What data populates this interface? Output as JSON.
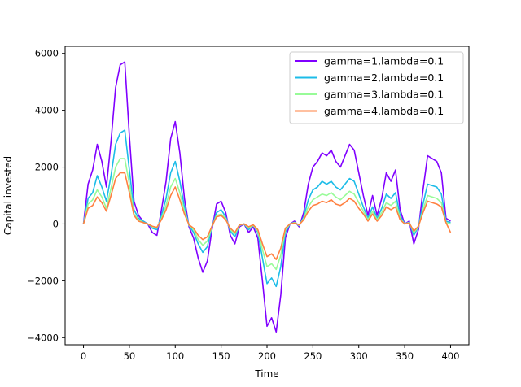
{
  "chart_data": {
    "type": "line",
    "xlabel": "Time",
    "ylabel": "Capital invested",
    "xlim": [
      -20,
      420
    ],
    "ylim": [
      -4250,
      6250
    ],
    "xticks": [
      0,
      50,
      100,
      150,
      200,
      250,
      300,
      350,
      400
    ],
    "yticks": [
      -4000,
      -2000,
      0,
      2000,
      4000,
      6000
    ],
    "grid": false,
    "legend_position": "top-right",
    "series": [
      {
        "name": "gamma=1,lambda=0.1",
        "color": "#8000ff",
        "x": [
          0,
          5,
          10,
          15,
          20,
          25,
          30,
          35,
          40,
          45,
          50,
          55,
          60,
          65,
          70,
          75,
          80,
          85,
          90,
          95,
          100,
          105,
          110,
          115,
          120,
          125,
          130,
          135,
          140,
          145,
          150,
          155,
          160,
          165,
          170,
          175,
          180,
          185,
          190,
          195,
          200,
          205,
          210,
          215,
          220,
          225,
          230,
          235,
          240,
          245,
          250,
          255,
          260,
          265,
          270,
          275,
          280,
          285,
          290,
          295,
          300,
          305,
          310,
          315,
          320,
          325,
          330,
          335,
          340,
          345,
          350,
          355,
          360,
          365,
          370,
          375,
          380,
          385,
          390,
          395,
          400
        ],
        "values": [
          0,
          1400,
          1900,
          2800,
          2200,
          1300,
          2900,
          4800,
          5600,
          5700,
          3100,
          800,
          300,
          100,
          0,
          -300,
          -400,
          500,
          1500,
          3000,
          3600,
          2500,
          900,
          -100,
          -500,
          -1200,
          -1700,
          -1300,
          -200,
          700,
          800,
          400,
          -400,
          -700,
          -100,
          0,
          -300,
          -100,
          -500,
          -2000,
          -3600,
          -3300,
          -3800,
          -2500,
          -500,
          0,
          100,
          -100,
          400,
          1400,
          2000,
          2200,
          2500,
          2400,
          2600,
          2200,
          2000,
          2400,
          2800,
          2600,
          1800,
          1000,
          300,
          1000,
          300,
          900,
          1800,
          1500,
          1900,
          500,
          0,
          100,
          -700,
          -200,
          1200,
          2400,
          2300,
          2200,
          1800,
          200,
          100
        ]
      },
      {
        "name": "gamma=2,lambda=0.1",
        "color": "#1cbce8",
        "x": [
          0,
          5,
          10,
          15,
          20,
          25,
          30,
          35,
          40,
          45,
          50,
          55,
          60,
          65,
          70,
          75,
          80,
          85,
          90,
          95,
          100,
          105,
          110,
          115,
          120,
          125,
          130,
          135,
          140,
          145,
          150,
          155,
          160,
          165,
          170,
          175,
          180,
          185,
          190,
          195,
          200,
          205,
          210,
          215,
          220,
          225,
          230,
          235,
          240,
          245,
          250,
          255,
          260,
          265,
          270,
          275,
          280,
          285,
          290,
          295,
          300,
          305,
          310,
          315,
          320,
          325,
          330,
          335,
          340,
          345,
          350,
          355,
          360,
          365,
          370,
          375,
          380,
          385,
          390,
          395,
          400
        ],
        "values": [
          0,
          900,
          1100,
          1700,
          1300,
          800,
          1700,
          2800,
          3200,
          3300,
          1900,
          500,
          200,
          100,
          0,
          -150,
          -200,
          300,
          900,
          1800,
          2200,
          1500,
          600,
          -50,
          -300,
          -700,
          -1000,
          -800,
          -100,
          400,
          500,
          250,
          -250,
          -450,
          -50,
          0,
          -200,
          -50,
          -300,
          -1200,
          -2100,
          -1900,
          -2200,
          -1500,
          -300,
          0,
          60,
          -60,
          250,
          850,
          1200,
          1300,
          1500,
          1400,
          1500,
          1300,
          1200,
          1400,
          1600,
          1500,
          1050,
          600,
          200,
          600,
          200,
          550,
          1050,
          900,
          1100,
          300,
          0,
          60,
          -400,
          -100,
          700,
          1400,
          1350,
          1300,
          1050,
          100,
          50
        ]
      },
      {
        "name": "gamma=3,lambda=0.1",
        "color": "#98fb98",
        "x": [
          0,
          5,
          10,
          15,
          20,
          25,
          30,
          35,
          40,
          45,
          50,
          55,
          60,
          65,
          70,
          75,
          80,
          85,
          90,
          95,
          100,
          105,
          110,
          115,
          120,
          125,
          130,
          135,
          140,
          145,
          150,
          155,
          160,
          165,
          170,
          175,
          180,
          185,
          190,
          195,
          200,
          205,
          210,
          215,
          220,
          225,
          230,
          235,
          240,
          245,
          250,
          255,
          260,
          265,
          270,
          275,
          280,
          285,
          290,
          295,
          300,
          305,
          310,
          315,
          320,
          325,
          330,
          335,
          340,
          345,
          350,
          355,
          360,
          365,
          370,
          375,
          380,
          385,
          390,
          395,
          400
        ],
        "values": [
          0,
          700,
          850,
          1200,
          950,
          550,
          1250,
          2000,
          2300,
          2300,
          1400,
          350,
          150,
          50,
          0,
          -100,
          -150,
          200,
          650,
          1300,
          1600,
          1100,
          450,
          -50,
          -200,
          -550,
          -750,
          -600,
          -100,
          300,
          350,
          200,
          -200,
          -350,
          -50,
          0,
          -150,
          -50,
          -250,
          -900,
          -1500,
          -1400,
          -1600,
          -1100,
          -200,
          0,
          50,
          -50,
          200,
          600,
          850,
          950,
          1050,
          1000,
          1100,
          950,
          850,
          1000,
          1150,
          1050,
          750,
          450,
          150,
          450,
          150,
          400,
          750,
          650,
          800,
          200,
          0,
          50,
          -300,
          -100,
          500,
          1000,
          950,
          900,
          750,
          50,
          0
        ]
      },
      {
        "name": "gamma=4,lambda=0.1",
        "color": "#ff8040",
        "x": [
          0,
          5,
          10,
          15,
          20,
          25,
          30,
          35,
          40,
          45,
          50,
          55,
          60,
          65,
          70,
          75,
          80,
          85,
          90,
          95,
          100,
          105,
          110,
          115,
          120,
          125,
          130,
          135,
          140,
          145,
          150,
          155,
          160,
          165,
          170,
          175,
          180,
          185,
          190,
          195,
          200,
          205,
          210,
          215,
          220,
          225,
          230,
          235,
          240,
          245,
          250,
          255,
          260,
          265,
          270,
          275,
          280,
          285,
          290,
          295,
          300,
          305,
          310,
          315,
          320,
          325,
          330,
          335,
          340,
          345,
          350,
          355,
          360,
          365,
          370,
          375,
          380,
          385,
          390,
          395,
          400
        ],
        "values": [
          0,
          550,
          650,
          950,
          750,
          450,
          1000,
          1600,
          1800,
          1800,
          1100,
          300,
          100,
          50,
          0,
          -80,
          -120,
          150,
          500,
          1000,
          1300,
          850,
          350,
          -30,
          -150,
          -400,
          -550,
          -450,
          -80,
          250,
          300,
          150,
          -150,
          -300,
          -30,
          0,
          -100,
          -30,
          -200,
          -700,
          -1150,
          -1050,
          -1250,
          -850,
          -150,
          0,
          30,
          -30,
          150,
          450,
          650,
          700,
          800,
          750,
          850,
          700,
          650,
          750,
          900,
          800,
          550,
          350,
          100,
          350,
          100,
          300,
          600,
          500,
          600,
          150,
          0,
          30,
          -250,
          -80,
          400,
          800,
          750,
          700,
          600,
          50,
          -300
        ]
      }
    ]
  }
}
